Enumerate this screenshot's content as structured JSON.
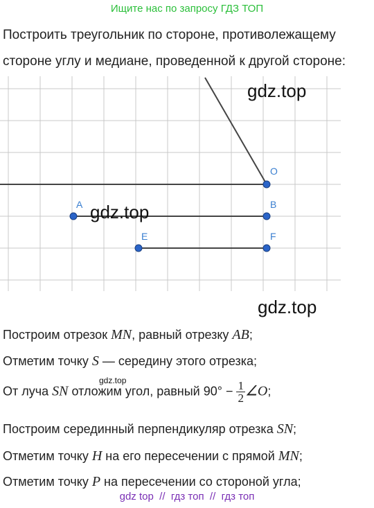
{
  "header": {
    "title": "Ищите нас по запросу ГДЗ ТОП"
  },
  "problem": {
    "lines": [
      "Построить треугольник по стороне, противолежащему",
      "стороне углу и медиане, проведенной к другой стороне:"
    ]
  },
  "diagram": {
    "points": [
      {
        "label": "O"
      },
      {
        "label": "A"
      },
      {
        "label": "B"
      },
      {
        "label": "E"
      },
      {
        "label": "F"
      }
    ]
  },
  "watermarks": [
    "gdz.top",
    "gdz.top",
    "gdz.top",
    "gdz.top"
  ],
  "steps": [
    [
      {
        "text": "Построим отрезок "
      },
      {
        "math": "MN"
      },
      {
        "text": ", равный отрезку "
      },
      {
        "math": "AB"
      },
      {
        "text": ";"
      }
    ],
    [
      {
        "text": "Отметим точку "
      },
      {
        "math": "S"
      },
      {
        "text": " — середину этого отрезка;"
      }
    ],
    [
      {
        "text": "От луча "
      },
      {
        "math": "SN"
      },
      {
        "text": " отложим угол, равный 90° − "
      },
      {
        "num": "1",
        "den": "2"
      },
      {
        "math": "∠O"
      },
      {
        "text": ";"
      }
    ],
    [
      {
        "text": "Построим серединный перпендикуляр отрезка "
      },
      {
        "math": "SN"
      },
      {
        "text": ";"
      }
    ],
    [
      {
        "text": "Отметим точку "
      },
      {
        "math": "H"
      },
      {
        "text": " на его пересечении с прямой "
      },
      {
        "math": "MN"
      },
      {
        "text": ";"
      }
    ],
    [
      {
        "text": "Отметим точку "
      },
      {
        "math": "P"
      },
      {
        "text": " на пересечении со стороной угла;"
      }
    ]
  ],
  "footer": {
    "text": "gdz top  //  гдз топ  //  гдз топ"
  }
}
